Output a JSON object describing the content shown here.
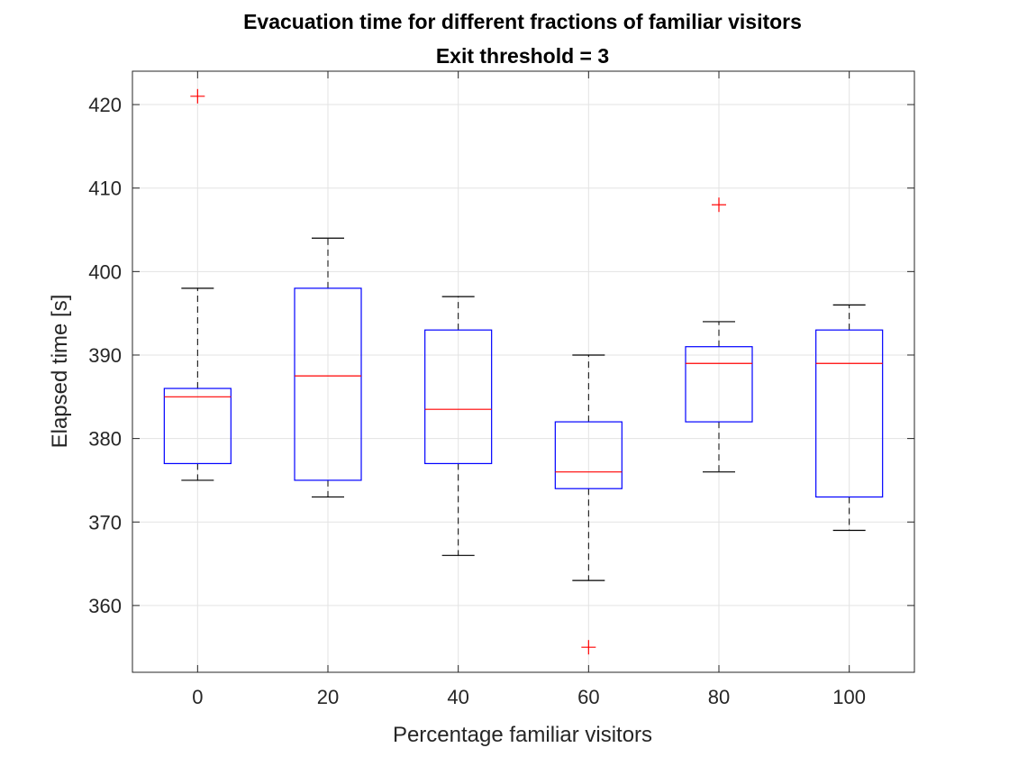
{
  "chart_data": {
    "type": "boxplot",
    "title": [
      "Evacuation time for different fractions of familiar visitors",
      "Exit threshold = 3"
    ],
    "xlabel": "Percentage familiar visitors",
    "ylabel": "Elapsed time [s]",
    "ylim": [
      352,
      424
    ],
    "yticks": [
      360,
      370,
      380,
      390,
      400,
      410,
      420
    ],
    "grid": true,
    "colors": {
      "box": "#0000ff",
      "median": "#ff0000",
      "whisker": "#000000",
      "outlier": "#ff0000",
      "grid": "#e3e3e3",
      "axis": "#262626"
    },
    "categories": [
      "0",
      "20",
      "40",
      "60",
      "80",
      "100"
    ],
    "boxes": [
      {
        "category": "0",
        "whisker_low": 375,
        "q1": 377,
        "median": 385,
        "q3": 386,
        "whisker_high": 398,
        "outliers": [
          421
        ]
      },
      {
        "category": "20",
        "whisker_low": 373,
        "q1": 375,
        "median": 387.5,
        "q3": 398,
        "whisker_high": 404,
        "outliers": []
      },
      {
        "category": "40",
        "whisker_low": 366,
        "q1": 377,
        "median": 383.5,
        "q3": 393,
        "whisker_high": 397,
        "outliers": []
      },
      {
        "category": "60",
        "whisker_low": 363,
        "q1": 374,
        "median": 376,
        "q3": 382,
        "whisker_high": 390,
        "outliers": [
          355
        ]
      },
      {
        "category": "80",
        "whisker_low": 376,
        "q1": 382,
        "median": 389,
        "q3": 391,
        "whisker_high": 394,
        "outliers": [
          408
        ]
      },
      {
        "category": "100",
        "whisker_low": 369,
        "q1": 373,
        "median": 389,
        "q3": 393,
        "whisker_high": 396,
        "outliers": []
      }
    ]
  }
}
